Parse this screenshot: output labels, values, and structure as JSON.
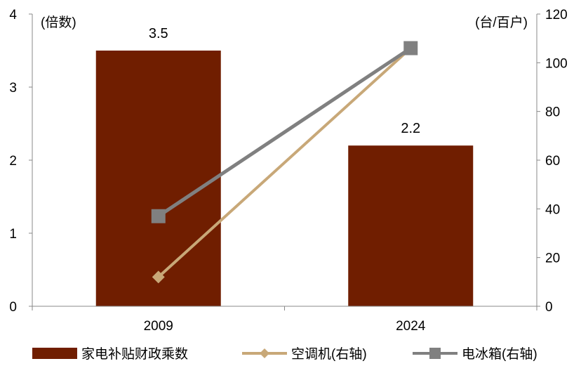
{
  "chart_data": {
    "type": "bar+line",
    "categories": [
      "2009",
      "2024"
    ],
    "left_axis": {
      "unit_label": "(倍数)",
      "ylim": [
        0,
        4
      ],
      "ticks": [
        "0",
        "1",
        "2",
        "3",
        "4"
      ]
    },
    "right_axis": {
      "unit_label": "(台/百户)",
      "ylim": [
        0,
        120
      ],
      "ticks": [
        "0",
        "20",
        "40",
        "60",
        "80",
        "100",
        "120"
      ]
    },
    "series": [
      {
        "name": "家电补贴财政乘数",
        "kind": "bar",
        "axis": "left",
        "values": [
          3.5,
          2.2
        ],
        "data_labels": [
          "3.5",
          "2.2"
        ],
        "color": "#701E00"
      },
      {
        "name": "空调机(右轴)",
        "kind": "line",
        "axis": "right",
        "marker": "diamond",
        "values": [
          12,
          106
        ],
        "color": "#C8A878"
      },
      {
        "name": "电冰箱(右轴)",
        "kind": "line",
        "axis": "right",
        "marker": "square",
        "values": [
          37,
          106
        ],
        "color": "#808080"
      }
    ],
    "grid": false,
    "legend": "bottom"
  }
}
